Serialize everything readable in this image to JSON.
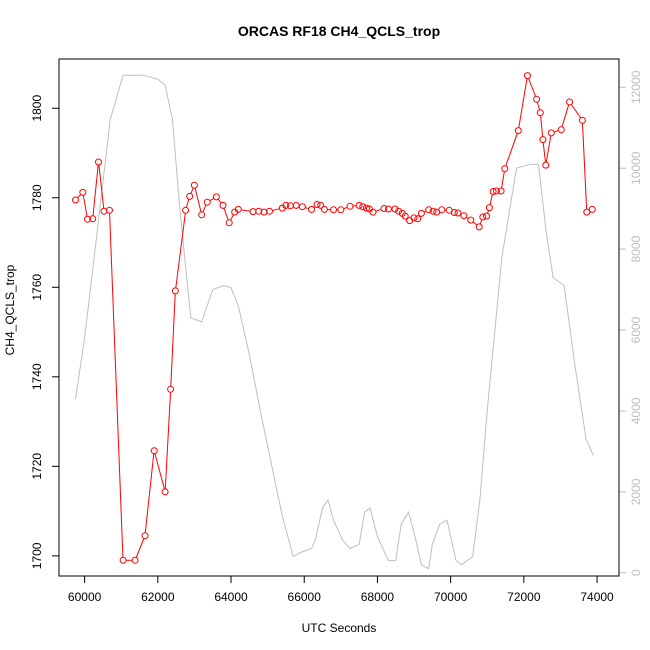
{
  "chart_data": {
    "type": "line",
    "title": "ORCAS RF18 CH4_QCLS_trop",
    "xlabel": "UTC Seconds",
    "ylabel": "CH4_QCLS_trop",
    "ylabel_right": "",
    "xlim": [
      59300,
      74600
    ],
    "ylim": [
      1695.5,
      1811
    ],
    "ylim_right": [
      -80,
      12700
    ],
    "x_ticks": [
      60000,
      62000,
      64000,
      66000,
      68000,
      70000,
      72000,
      74000
    ],
    "y_ticks": [
      1700,
      1720,
      1740,
      1760,
      1780,
      1800
    ],
    "y_ticks_right": [
      0,
      2000,
      4000,
      6000,
      8000,
      10000,
      12000
    ],
    "grid": false,
    "series": [
      {
        "role": "primary",
        "axis": "left",
        "style": "line+points",
        "color": "#ff0000",
        "x": [
          59750,
          59950,
          60080,
          60220,
          60380,
          60530,
          60680,
          61050,
          61380,
          61650,
          61900,
          62200,
          62350,
          62480,
          62760,
          62870,
          63000,
          63200,
          63350,
          63600,
          63780,
          63950,
          64100,
          64200,
          64600,
          64760,
          64900,
          65050,
          65400,
          65500,
          65620,
          65780,
          65950,
          66200,
          66350,
          66450,
          66550,
          66800,
          67000,
          67250,
          67500,
          67600,
          67700,
          67780,
          67880,
          68180,
          68300,
          68480,
          68580,
          68680,
          68760,
          68880,
          69000,
          69100,
          69200,
          69400,
          69520,
          69620,
          69760,
          69960,
          70100,
          70200,
          70360,
          70550,
          70780,
          70880,
          70980,
          71060,
          71160,
          71250,
          71380,
          71480,
          71850,
          72100,
          72350,
          72450,
          72520,
          72600,
          72750,
          73020,
          73250,
          73600,
          73720,
          73870
        ],
        "y": [
          1779.5,
          1781.2,
          1775.2,
          1775.3,
          1788,
          1777,
          1777.2,
          1699,
          1699,
          1704.5,
          1723.5,
          1714.3,
          1737.2,
          1759.2,
          1777.2,
          1780.3,
          1782.8,
          1776.2,
          1779,
          1780.2,
          1778.3,
          1774.4,
          1776.8,
          1777.4,
          1776.9,
          1777,
          1776.8,
          1777,
          1777.7,
          1778.3,
          1778.2,
          1778.3,
          1778,
          1777.4,
          1778.5,
          1778.3,
          1777.4,
          1777.3,
          1777.3,
          1778.1,
          1778.3,
          1778,
          1777.7,
          1777.5,
          1776.8,
          1777.6,
          1777.5,
          1777.5,
          1777,
          1776.5,
          1775.9,
          1774.9,
          1775.5,
          1775.3,
          1776.5,
          1777.3,
          1777,
          1776.8,
          1777.3,
          1777.2,
          1776.7,
          1776.6,
          1776,
          1775,
          1773.5,
          1775.7,
          1775.9,
          1777.8,
          1781.4,
          1781.5,
          1781.5,
          1786.5,
          1795,
          1807.3,
          1802,
          1799,
          1793,
          1787.3,
          1794.5,
          1795.2,
          1801.4,
          1797.3,
          1776.8,
          1777.4
        ]
      },
      {
        "role": "secondary",
        "axis": "right",
        "style": "line",
        "color": "#bebebe",
        "x": [
          59750,
          60000,
          60300,
          60700,
          61050,
          61600,
          62000,
          62200,
          62400,
          62600,
          62900,
          63200,
          63500,
          63800,
          64000,
          64200,
          64500,
          64800,
          65100,
          65400,
          65700,
          65900,
          66200,
          66300,
          66500,
          66650,
          66800,
          67050,
          67250,
          67500,
          67650,
          67800,
          68000,
          68300,
          68500,
          68650,
          68850,
          69000,
          69200,
          69400,
          69500,
          69700,
          69900,
          70150,
          70300,
          70600,
          70800,
          71000,
          71400,
          71800,
          72200,
          72400,
          72600,
          72800,
          73100,
          73400,
          73700,
          73900
        ],
        "y": [
          4300,
          5800,
          8100,
          11200,
          12300,
          12300,
          12200,
          12050,
          11200,
          9000,
          6300,
          6200,
          7000,
          7100,
          7050,
          6600,
          5400,
          4000,
          2700,
          1400,
          400,
          500,
          600,
          800,
          1600,
          1800,
          1300,
          800,
          600,
          700,
          1500,
          1600,
          900,
          300,
          300,
          1200,
          1500,
          1000,
          200,
          100,
          700,
          1200,
          1300,
          300,
          200,
          400,
          1800,
          4000,
          7800,
          10000,
          10100,
          10100,
          8500,
          7300,
          7100,
          5100,
          3300,
          2900
        ]
      }
    ]
  }
}
